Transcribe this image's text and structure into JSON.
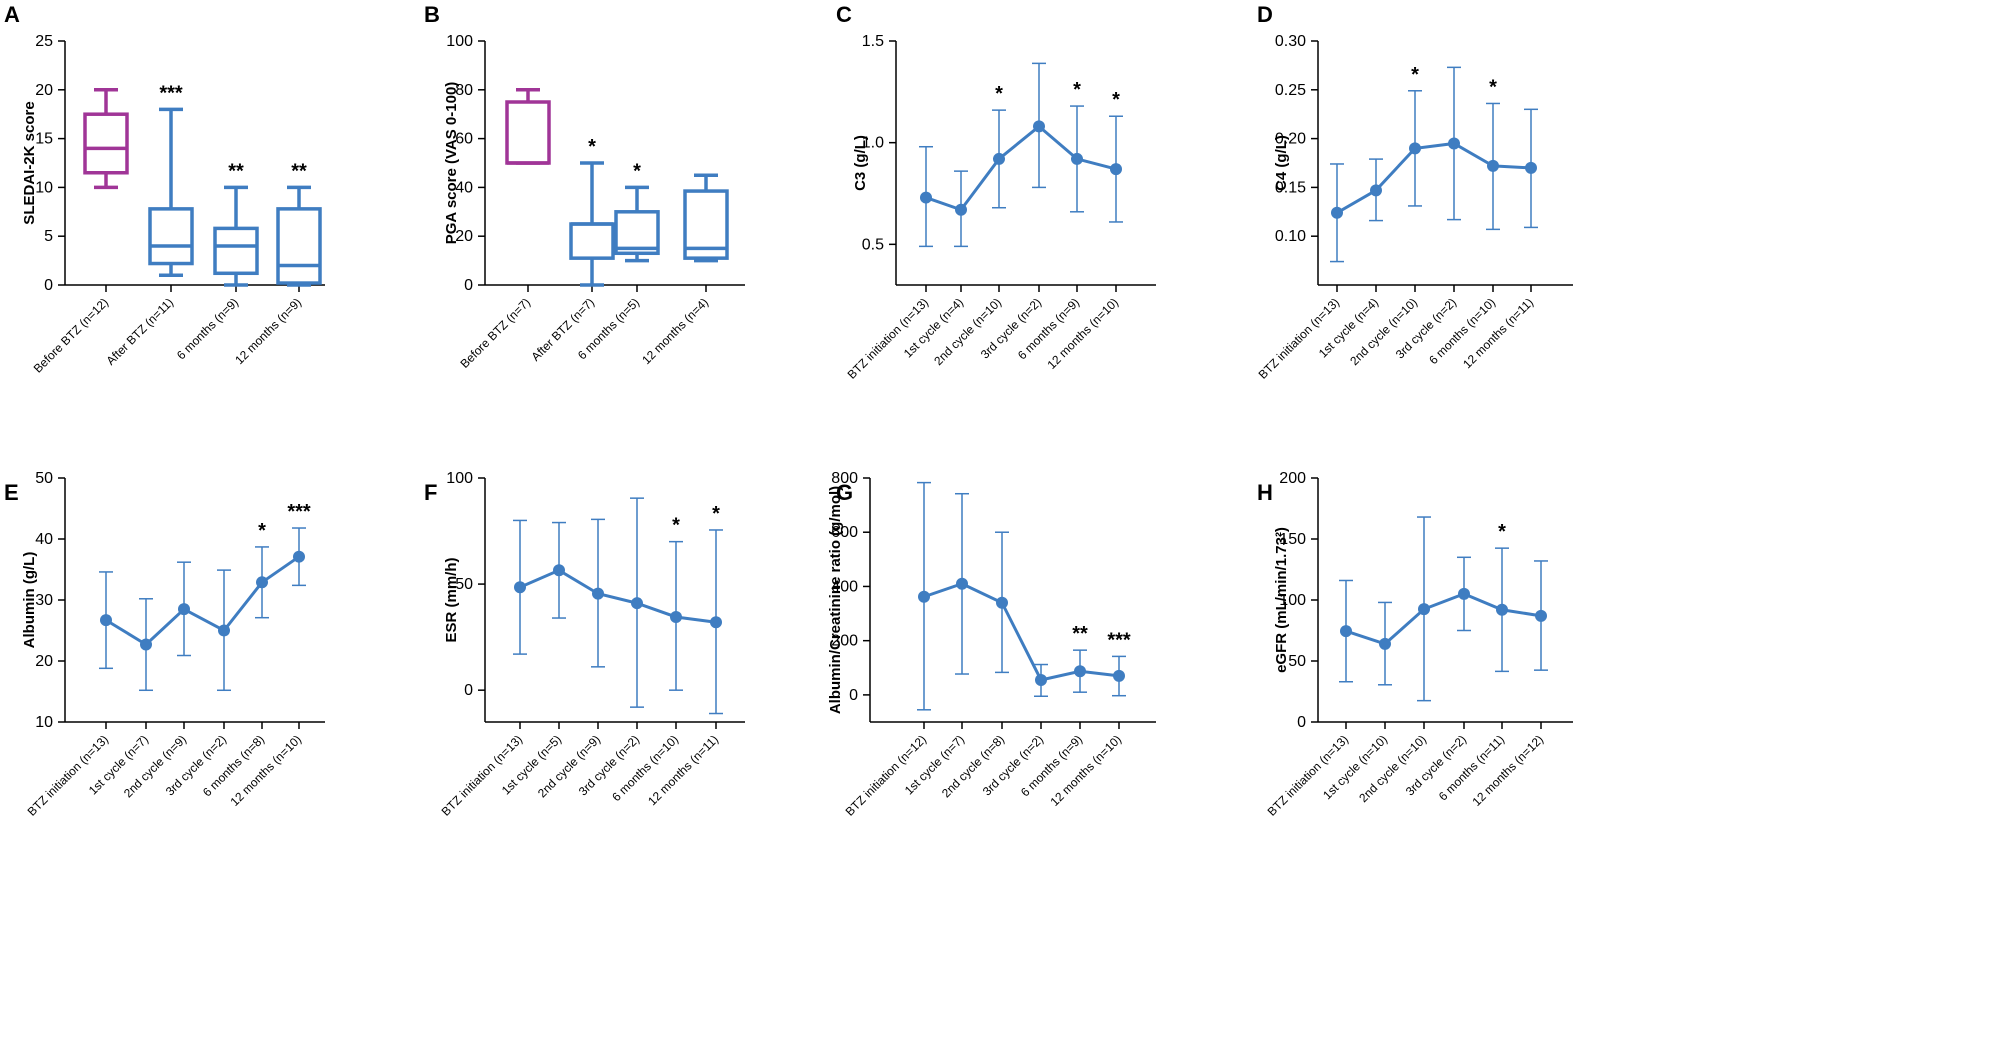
{
  "figure": {
    "colors": {
      "before": "#a03597",
      "blue": "#3f7dc1",
      "axis": "#000000"
    },
    "chart_data": [
      {
        "panel": "A",
        "type": "box",
        "ylabel": "SLEDAI-2K score",
        "ylim": [
          0,
          25
        ],
        "yticks": [
          "0",
          "5",
          "10",
          "15",
          "20",
          "25"
        ],
        "yticksValues": [
          0,
          5,
          10,
          15,
          20,
          25
        ],
        "categories": [
          "Before BTZ (n=12)",
          "After BTZ (n=11)",
          "6 months (n=9)",
          "12 months (n=9)"
        ],
        "boxes": [
          {
            "min": 10,
            "q1": 11.5,
            "median": 14,
            "q3": 17.5,
            "max": 20,
            "color": "before",
            "sig": ""
          },
          {
            "min": 1,
            "q1": 2.2,
            "median": 4,
            "q3": 7.8,
            "max": 18,
            "color": "blue",
            "sig": "***"
          },
          {
            "min": 0,
            "q1": 1.2,
            "median": 4,
            "q3": 5.8,
            "max": 10,
            "color": "blue",
            "sig": "**"
          },
          {
            "min": 0,
            "q1": 0.2,
            "median": 2,
            "q3": 7.8,
            "max": 10,
            "color": "blue",
            "sig": "**"
          }
        ]
      },
      {
        "panel": "B",
        "type": "box",
        "ylabel": "PGA score (VAS 0-100)",
        "ylim": [
          0,
          100
        ],
        "yticks": [
          "0",
          "20",
          "40",
          "60",
          "80",
          "100"
        ],
        "yticksValues": [
          0,
          20,
          40,
          60,
          80,
          100
        ],
        "categories": [
          "Before BTZ (n=7)",
          "After BTZ (n=7)",
          "6 months (n=5)",
          "12 months (n=4)"
        ],
        "boxes": [
          {
            "min": 50,
            "q1": 50,
            "median": 50,
            "q3": 75,
            "max": 80,
            "color": "before",
            "sig": ""
          },
          {
            "min": 0,
            "q1": 11,
            "median": 25,
            "q3": 25,
            "max": 50,
            "color": "blue",
            "sig": "*"
          },
          {
            "min": 10,
            "q1": 13,
            "median": 15,
            "q3": 30,
            "max": 40,
            "color": "blue",
            "sig": "*"
          },
          {
            "min": 10,
            "q1": 11,
            "median": 15,
            "q3": 38.5,
            "max": 45,
            "color": "blue",
            "sig": ""
          }
        ]
      },
      {
        "panel": "C",
        "type": "line",
        "ylabel": "C3 (g/L)",
        "ylim": [
          0.3,
          1.5
        ],
        "yticks": [
          "0.5",
          "1.0",
          "1.5"
        ],
        "yticksValues": [
          0.5,
          1.0,
          1.5
        ],
        "categories": [
          "BTZ initiation (n=13)",
          "1st cycle (n=4)",
          "2nd cycle (n=10)",
          "3rd cycle (n=2)",
          "6 months (n=9)",
          "12 months (n=10)"
        ],
        "values": [
          0.73,
          0.67,
          0.92,
          1.08,
          0.92,
          0.87
        ],
        "lower": [
          0.49,
          0.49,
          0.68,
          0.78,
          0.66,
          0.61
        ],
        "upper": [
          0.98,
          0.86,
          1.16,
          1.39,
          1.18,
          1.13
        ],
        "sig": [
          "",
          "",
          "*",
          "",
          "*",
          "*"
        ]
      },
      {
        "panel": "D",
        "type": "line",
        "ylabel": "C4 (g/L)",
        "ylim": [
          0.05,
          0.3
        ],
        "yticks": [
          "0.10",
          "0.15",
          "0.20",
          "0.25",
          "0.30"
        ],
        "yticksValues": [
          0.1,
          0.15,
          0.2,
          0.25,
          0.3
        ],
        "categories": [
          "BTZ initiation (n=13)",
          "1st cycle (n=4)",
          "2nd cycle (n=10)",
          "3rd cycle (n=2)",
          "6 months (n=10)",
          "12 months (n=11)"
        ],
        "values": [
          0.124,
          0.147,
          0.19,
          0.195,
          0.172,
          0.17
        ],
        "lower": [
          0.074,
          0.116,
          0.131,
          0.117,
          0.107,
          0.109
        ],
        "upper": [
          0.174,
          0.179,
          0.249,
          0.273,
          0.236,
          0.23
        ],
        "sig": [
          "",
          "",
          "*",
          "",
          "*",
          ""
        ]
      },
      {
        "panel": "E",
        "type": "line",
        "ylabel": "Albumin (g/L)",
        "ylim": [
          10,
          50
        ],
        "yticks": [
          "10",
          "20",
          "30",
          "40",
          "50"
        ],
        "yticksValues": [
          10,
          20,
          30,
          40,
          50
        ],
        "categories": [
          "BTZ initiation (n=13)",
          "1st cycle (n=7)",
          "2nd cycle (n=9)",
          "3rd cycle (n=2)",
          "6 months (n=8)",
          "12 months (n=10)"
        ],
        "values": [
          26.7,
          22.7,
          28.5,
          25.0,
          32.9,
          37.1
        ],
        "lower": [
          18.8,
          15.2,
          20.9,
          15.2,
          27.1,
          32.4
        ],
        "upper": [
          34.6,
          30.2,
          36.2,
          34.9,
          38.7,
          41.8
        ],
        "sig": [
          "",
          "",
          "",
          "",
          "*",
          "***"
        ]
      },
      {
        "panel": "F",
        "type": "line",
        "ylabel": "ESR (mm/h)",
        "ylim": [
          -15,
          100
        ],
        "yticks": [
          "0",
          "50",
          "100"
        ],
        "yticksValues": [
          0,
          50,
          100
        ],
        "categories": [
          "BTZ initiation (n=13)",
          "1st cycle (n=5)",
          "2nd cycle (n=9)",
          "3rd cycle (n=2)",
          "6 months (n=10)",
          "12 months (n=11)"
        ],
        "values": [
          48.5,
          56.5,
          45.5,
          41.0,
          34.5,
          32.0
        ],
        "lower": [
          17,
          34,
          11,
          -8,
          0,
          -11
        ],
        "upper": [
          80,
          79,
          80.5,
          90.5,
          70,
          75.5
        ],
        "sig": [
          "",
          "",
          "",
          "",
          "*",
          "*"
        ]
      },
      {
        "panel": "G",
        "type": "line",
        "ylabel": "Albumin/Creatinine ratio (g/mol)",
        "ylim": [
          -100,
          800
        ],
        "yticks": [
          "0",
          "200",
          "400",
          "600",
          "800"
        ],
        "yticksValues": [
          0,
          200,
          400,
          600,
          800
        ],
        "categories": [
          "BTZ initiation (n=12)",
          "1st cycle (n=7)",
          "2nd cycle (n=8)",
          "3rd cycle (n=2)",
          "6 months (n=9)",
          "12 months (n=10)"
        ],
        "values": [
          362,
          410,
          340,
          55,
          87,
          70
        ],
        "lower": [
          -55,
          77,
          83,
          -5,
          10,
          -3
        ],
        "upper": [
          783,
          742,
          600,
          112,
          165,
          142
        ],
        "sig": [
          "",
          "",
          "",
          "",
          "**",
          "***"
        ]
      },
      {
        "panel": "H",
        "type": "line",
        "ylabel": "eGFR (mL/min/1.73²)",
        "ylim": [
          0,
          200
        ],
        "yticks": [
          "0",
          "50",
          "100",
          "150",
          "200"
        ],
        "yticksValues": [
          0,
          50,
          100,
          150,
          200
        ],
        "categories": [
          "BTZ initiation (n=13)",
          "1st cycle (n=10)",
          "2nd cycle (n=10)",
          "3rd cycle (n=2)",
          "6 months (n=11)",
          "12 months (n=12)"
        ],
        "values": [
          74.5,
          64,
          92.5,
          105,
          92,
          87
        ],
        "lower": [
          33,
          30.5,
          17.5,
          75,
          41.5,
          42.5
        ],
        "upper": [
          116,
          98,
          168,
          135,
          142.5,
          132
        ],
        "sig": [
          "",
          "",
          "",
          "",
          "*",
          ""
        ]
      }
    ]
  }
}
